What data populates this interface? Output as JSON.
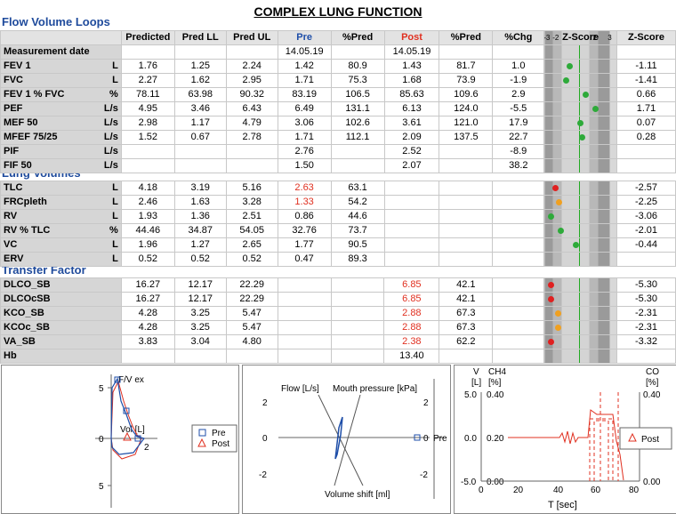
{
  "title": "COMPLEX LUNG FUNCTION",
  "sections": {
    "flow": "Flow Volume Loops",
    "volumes": "Lung Volumes",
    "transfer": "Transfer Factor"
  },
  "headers": [
    "Predicted",
    "Pred LL",
    "Pred UL",
    "Pre",
    "%Pred",
    "Post",
    "%Pred",
    "%Chg",
    "Z-Score",
    "Z-Score"
  ],
  "zscale": [
    "-3",
    "-2",
    "-1",
    "0",
    "1",
    "2",
    "3"
  ],
  "flow_rows": [
    {
      "name": "Measurement date",
      "unit": "",
      "pred": "",
      "ll": "",
      "ul": "",
      "pre": "14.05.19",
      "ppred": "",
      "post": "14.05.19",
      "ppost": "",
      "chg": "",
      "z": null,
      "zc": "",
      "zscore": ""
    },
    {
      "name": "FEV 1",
      "unit": "L",
      "pred": "1.76",
      "ll": "1.25",
      "ul": "2.24",
      "pre": "1.42",
      "ppred": "80.9",
      "post": "1.43",
      "ppost": "81.7",
      "chg": "1.0",
      "z": -1.11,
      "zc": "#2eaa3a",
      "zscore": "-1.11"
    },
    {
      "name": "FVC",
      "unit": "L",
      "pred": "2.27",
      "ll": "1.62",
      "ul": "2.95",
      "pre": "1.71",
      "ppred": "75.3",
      "post": "1.68",
      "ppost": "73.9",
      "chg": "-1.9",
      "z": -1.41,
      "zc": "#2eaa3a",
      "zscore": "-1.41"
    },
    {
      "name": "FEV 1 % FVC",
      "unit": "%",
      "pred": "78.11",
      "ll": "63.98",
      "ul": "90.32",
      "pre": "83.19",
      "ppred": "106.5",
      "post": "85.63",
      "ppost": "109.6",
      "chg": "2.9",
      "z": 0.66,
      "zc": "#2eaa3a",
      "zscore": "0.66"
    },
    {
      "name": "PEF",
      "unit": "L/s",
      "pred": "4.95",
      "ll": "3.46",
      "ul": "6.43",
      "pre": "6.49",
      "ppred": "131.1",
      "post": "6.13",
      "ppost": "124.0",
      "chg": "-5.5",
      "z": 1.71,
      "zc": "#2eaa3a",
      "zscore": "1.71"
    },
    {
      "name": "MEF 50",
      "unit": "L/s",
      "pred": "2.98",
      "ll": "1.17",
      "ul": "4.79",
      "pre": "3.06",
      "ppred": "102.6",
      "post": "3.61",
      "ppost": "121.0",
      "chg": "17.9",
      "z": 0.07,
      "zc": "#2eaa3a",
      "zscore": "0.07"
    },
    {
      "name": "MFEF 75/25",
      "unit": "L/s",
      "pred": "1.52",
      "ll": "0.67",
      "ul": "2.78",
      "pre": "1.71",
      "ppred": "112.1",
      "post": "2.09",
      "ppost": "137.5",
      "chg": "22.7",
      "z": 0.28,
      "zc": "#2eaa3a",
      "zscore": "0.28"
    },
    {
      "name": "PIF",
      "unit": "L/s",
      "pred": "",
      "ll": "",
      "ul": "",
      "pre": "2.76",
      "ppred": "",
      "post": "2.52",
      "ppost": "",
      "chg": "-8.9",
      "z": null,
      "zc": "",
      "zscore": ""
    },
    {
      "name": "FIF 50",
      "unit": "L/s",
      "pred": "",
      "ll": "",
      "ul": "",
      "pre": "1.50",
      "ppred": "",
      "post": "2.07",
      "ppost": "",
      "chg": "38.2",
      "z": null,
      "zc": "",
      "zscore": ""
    }
  ],
  "volume_rows": [
    {
      "name": "TLC",
      "unit": "L",
      "pred": "4.18",
      "ll": "3.19",
      "ul": "5.16",
      "pre": "2.63",
      "prered": true,
      "ppred": "63.1",
      "post": "",
      "ppost": "",
      "chg": "",
      "z": -2.57,
      "zc": "#e02020",
      "zscore": "-2.57"
    },
    {
      "name": "FRCpleth",
      "unit": "L",
      "pred": "2.46",
      "ll": "1.63",
      "ul": "3.28",
      "pre": "1.33",
      "prered": true,
      "ppred": "54.2",
      "post": "",
      "ppost": "",
      "chg": "",
      "z": -2.25,
      "zc": "#f0a020",
      "zscore": "-2.25"
    },
    {
      "name": "RV",
      "unit": "L",
      "pred": "1.93",
      "ll": "1.36",
      "ul": "2.51",
      "pre": "0.86",
      "prered": false,
      "ppred": "44.6",
      "post": "",
      "ppost": "",
      "chg": "",
      "z": -3.06,
      "zc": "#2eaa3a",
      "zscore": "-3.06"
    },
    {
      "name": "RV % TLC",
      "unit": "%",
      "pred": "44.46",
      "ll": "34.87",
      "ul": "54.05",
      "pre": "32.76",
      "prered": false,
      "ppred": "73.7",
      "post": "",
      "ppost": "",
      "chg": "",
      "z": -2.01,
      "zc": "#2eaa3a",
      "zscore": "-2.01"
    },
    {
      "name": "VC",
      "unit": "L",
      "pred": "1.96",
      "ll": "1.27",
      "ul": "2.65",
      "pre": "1.77",
      "prered": false,
      "ppred": "90.5",
      "post": "",
      "ppost": "",
      "chg": "",
      "z": -0.44,
      "zc": "#2eaa3a",
      "zscore": "-0.44"
    },
    {
      "name": "ERV",
      "unit": "L",
      "pred": "0.52",
      "ll": "0.52",
      "ul": "0.52",
      "pre": "0.47",
      "prered": false,
      "ppred": "89.3",
      "post": "",
      "ppost": "",
      "chg": "",
      "z": null,
      "zc": "",
      "zscore": ""
    }
  ],
  "transfer_rows": [
    {
      "name": "DLCO_SB",
      "unit": "",
      "pred": "16.27",
      "ll": "12.17",
      "ul": "22.29",
      "pre": "",
      "ppred": "",
      "post": "6.85",
      "postred": true,
      "ppost": "42.1",
      "chg": "",
      "z": -5.3,
      "zc": "#e02020",
      "zscore": "-5.30"
    },
    {
      "name": "DLCOcSB",
      "unit": "",
      "pred": "16.27",
      "ll": "12.17",
      "ul": "22.29",
      "pre": "",
      "ppred": "",
      "post": "6.85",
      "postred": true,
      "ppost": "42.1",
      "chg": "",
      "z": -5.3,
      "zc": "#e02020",
      "zscore": "-5.30"
    },
    {
      "name": "KCO_SB",
      "unit": "",
      "pred": "4.28",
      "ll": "3.25",
      "ul": "5.47",
      "pre": "",
      "ppred": "",
      "post": "2.88",
      "postred": true,
      "ppost": "67.3",
      "chg": "",
      "z": -2.31,
      "zc": "#f0a020",
      "zscore": "-2.31"
    },
    {
      "name": "KCOc_SB",
      "unit": "",
      "pred": "4.28",
      "ll": "3.25",
      "ul": "5.47",
      "pre": "",
      "ppred": "",
      "post": "2.88",
      "postred": true,
      "ppost": "67.3",
      "chg": "",
      "z": -2.31,
      "zc": "#f0a020",
      "zscore": "-2.31"
    },
    {
      "name": "VA_SB",
      "unit": "",
      "pred": "3.83",
      "ll": "3.04",
      "ul": "4.80",
      "pre": "",
      "ppred": "",
      "post": "2.38",
      "postred": true,
      "ppost": "62.2",
      "chg": "",
      "z": -3.32,
      "zc": "#e02020",
      "zscore": "-3.32"
    },
    {
      "name": "Hb",
      "unit": "",
      "pred": "",
      "ll": "",
      "ul": "",
      "pre": "",
      "ppred": "",
      "post": "13.40",
      "postred": false,
      "ppost": "",
      "chg": "",
      "z": null,
      "zc": "",
      "zscore": ""
    }
  ],
  "charts": {
    "flow_volume": {
      "ylabel": "F/V ex",
      "xlabel": "Vol [L]",
      "yticks": [
        "5",
        "0",
        "5"
      ],
      "xtick": "2",
      "legend": [
        "Pre",
        "Post"
      ]
    },
    "pressure": {
      "flow_label": "Flow [L/s]",
      "mouth_label": "Mouth pressure [kPa]",
      "volume_label": "Volume shift [ml]",
      "yticks": [
        "2",
        "0",
        "-2"
      ],
      "legend": [
        "Pre"
      ]
    },
    "gas": {
      "left_title": "V",
      "left_unit": "[L]",
      "ch4": "CH4",
      "ch4_unit": "[%]",
      "ch4_top": "0.40",
      "co": "CO",
      "co_unit": "[%]",
      "co_top": "0.40",
      "mid_left": "0.0",
      "mid_ch4": "0.20",
      "low_left": "-5.0",
      "low_ch4": "0.00",
      "low_co": "0.00",
      "top_left": "5.0",
      "xticks": [
        "0",
        "20",
        "40",
        "60",
        "80"
      ],
      "xlabel": "T  [sec]",
      "legend": [
        "Post"
      ]
    }
  },
  "colors": {
    "section": "#1f4b9c",
    "pre": "#1e4ea8",
    "post": "#e03020",
    "zline": "#22aa22"
  }
}
